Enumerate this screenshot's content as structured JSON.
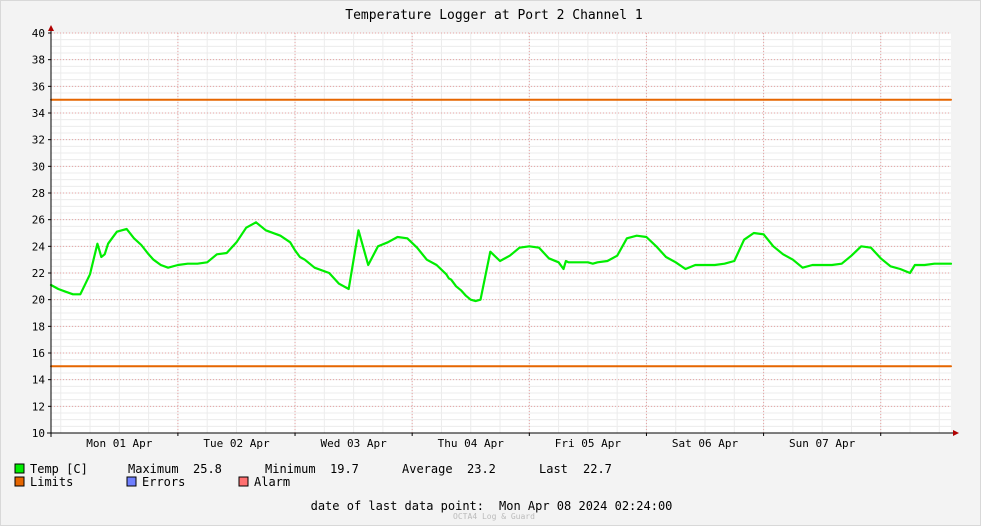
{
  "chart_data": {
    "type": "line",
    "title": "Temperature Logger at Port 2 Channel 1",
    "xlabel": "",
    "ylabel": "",
    "ylim": [
      10,
      40
    ],
    "y_ticks": [
      10,
      12,
      14,
      16,
      18,
      20,
      22,
      24,
      26,
      28,
      30,
      32,
      34,
      36,
      38,
      40
    ],
    "x_unit": "hours since Mon 01 Apr 00:00",
    "xlim": [
      -14,
      170.4
    ],
    "x_tick_labels": [
      "Mon 01 Apr",
      "Tue 02 Apr",
      "Wed 03 Apr",
      "Thu 04 Apr",
      "Fri 05 Apr",
      "Sat 06 Apr",
      "Sun 07 Apr"
    ],
    "grid": true,
    "series": [
      {
        "name": "Temp [C]",
        "color": "#00ee00",
        "x": [
          -14,
          -12.5,
          -11,
          -9.5,
          -8,
          -6,
          -4.5,
          -4,
          -3.7,
          -3,
          -2.3,
          -1.5,
          -0.5,
          0.5,
          1.5,
          3,
          4.5,
          6,
          7,
          8.5,
          10,
          12,
          14,
          16,
          18,
          20,
          22,
          24,
          26,
          28,
          30,
          33,
          35,
          36,
          37,
          38,
          39,
          40,
          43,
          45,
          47,
          49,
          51,
          53,
          55,
          57,
          59,
          61,
          63,
          65,
          67,
          67.5,
          68,
          69,
          70,
          71,
          72,
          73,
          74,
          76,
          78,
          80,
          82,
          84,
          86,
          88,
          90,
          91,
          91.5,
          92,
          93,
          94,
          95,
          96,
          97,
          98,
          100,
          102,
          104,
          106,
          108,
          110,
          112,
          114,
          116,
          118,
          120,
          122,
          124,
          126,
          128,
          130,
          132,
          134,
          136,
          138,
          140,
          142,
          144,
          146,
          148,
          150,
          152,
          154,
          156,
          158,
          160,
          162,
          163,
          164,
          165,
          167,
          169,
          170.4
        ],
        "y": [
          21.1,
          20.8,
          20.6,
          20.4,
          20.4,
          21.9,
          24.2,
          23.6,
          23.2,
          23.4,
          24.2,
          24.6,
          25.1,
          25.2,
          25.3,
          24.6,
          24.1,
          23.4,
          23.0,
          22.6,
          22.4,
          22.6,
          22.7,
          22.7,
          22.8,
          23.4,
          23.5,
          24.3,
          25.4,
          25.8,
          25.2,
          24.8,
          24.3,
          23.7,
          23.2,
          23.0,
          22.7,
          22.4,
          22.0,
          21.2,
          20.8,
          25.2,
          22.6,
          24.0,
          24.3,
          24.7,
          24.6,
          23.9,
          23.0,
          22.6,
          21.9,
          21.6,
          21.5,
          21.0,
          20.7,
          20.3,
          20.0,
          19.9,
          20.0,
          23.6,
          22.9,
          23.3,
          23.9,
          24.0,
          23.9,
          23.1,
          22.8,
          22.3,
          22.9,
          22.8,
          22.8,
          22.8,
          22.8,
          22.8,
          22.7,
          22.8,
          22.9,
          23.3,
          24.6,
          24.8,
          24.7,
          24.0,
          23.2,
          22.8,
          22.3,
          22.6,
          22.6,
          22.6,
          22.7,
          22.9,
          24.5,
          25.0,
          24.9,
          24.0,
          23.4,
          23.0,
          22.4,
          22.6,
          22.6,
          22.6,
          22.7,
          23.3,
          24.0,
          23.9,
          23.1,
          22.5,
          22.3,
          22.0,
          22.6,
          22.6,
          22.6,
          22.7,
          22.7,
          22.7
        ]
      },
      {
        "name": "",
        "color": "#e66600",
        "x": [
          -14,
          170.4
        ],
        "y": [
          35,
          35
        ]
      },
      {
        "name": "",
        "color": "#e66600",
        "x": [
          -14,
          170.4
        ],
        "y": [
          15,
          15
        ]
      }
    ]
  },
  "legend": {
    "temp": {
      "label": "Temp [C]",
      "color": "#00ee00"
    },
    "limits": {
      "label": "Limits",
      "color": "#e66600"
    },
    "errors": {
      "label": "Errors",
      "color": "#6f7fff"
    },
    "alarm": {
      "label": "Alarm",
      "color": "#ff7070"
    }
  },
  "stats": {
    "maximum_label": "Maximum",
    "maximum_value": "25.8",
    "minimum_label": "Minimum",
    "minimum_value": "19.7",
    "average_label": "Average",
    "average_value": "23.2",
    "last_label": "Last",
    "last_value": "22.7"
  },
  "footer": {
    "last_point_label": "date of last data point:",
    "last_point_value": "Mon Apr 08 2024 02:24:00",
    "watermark": "OCTA4 Log & Guard"
  }
}
